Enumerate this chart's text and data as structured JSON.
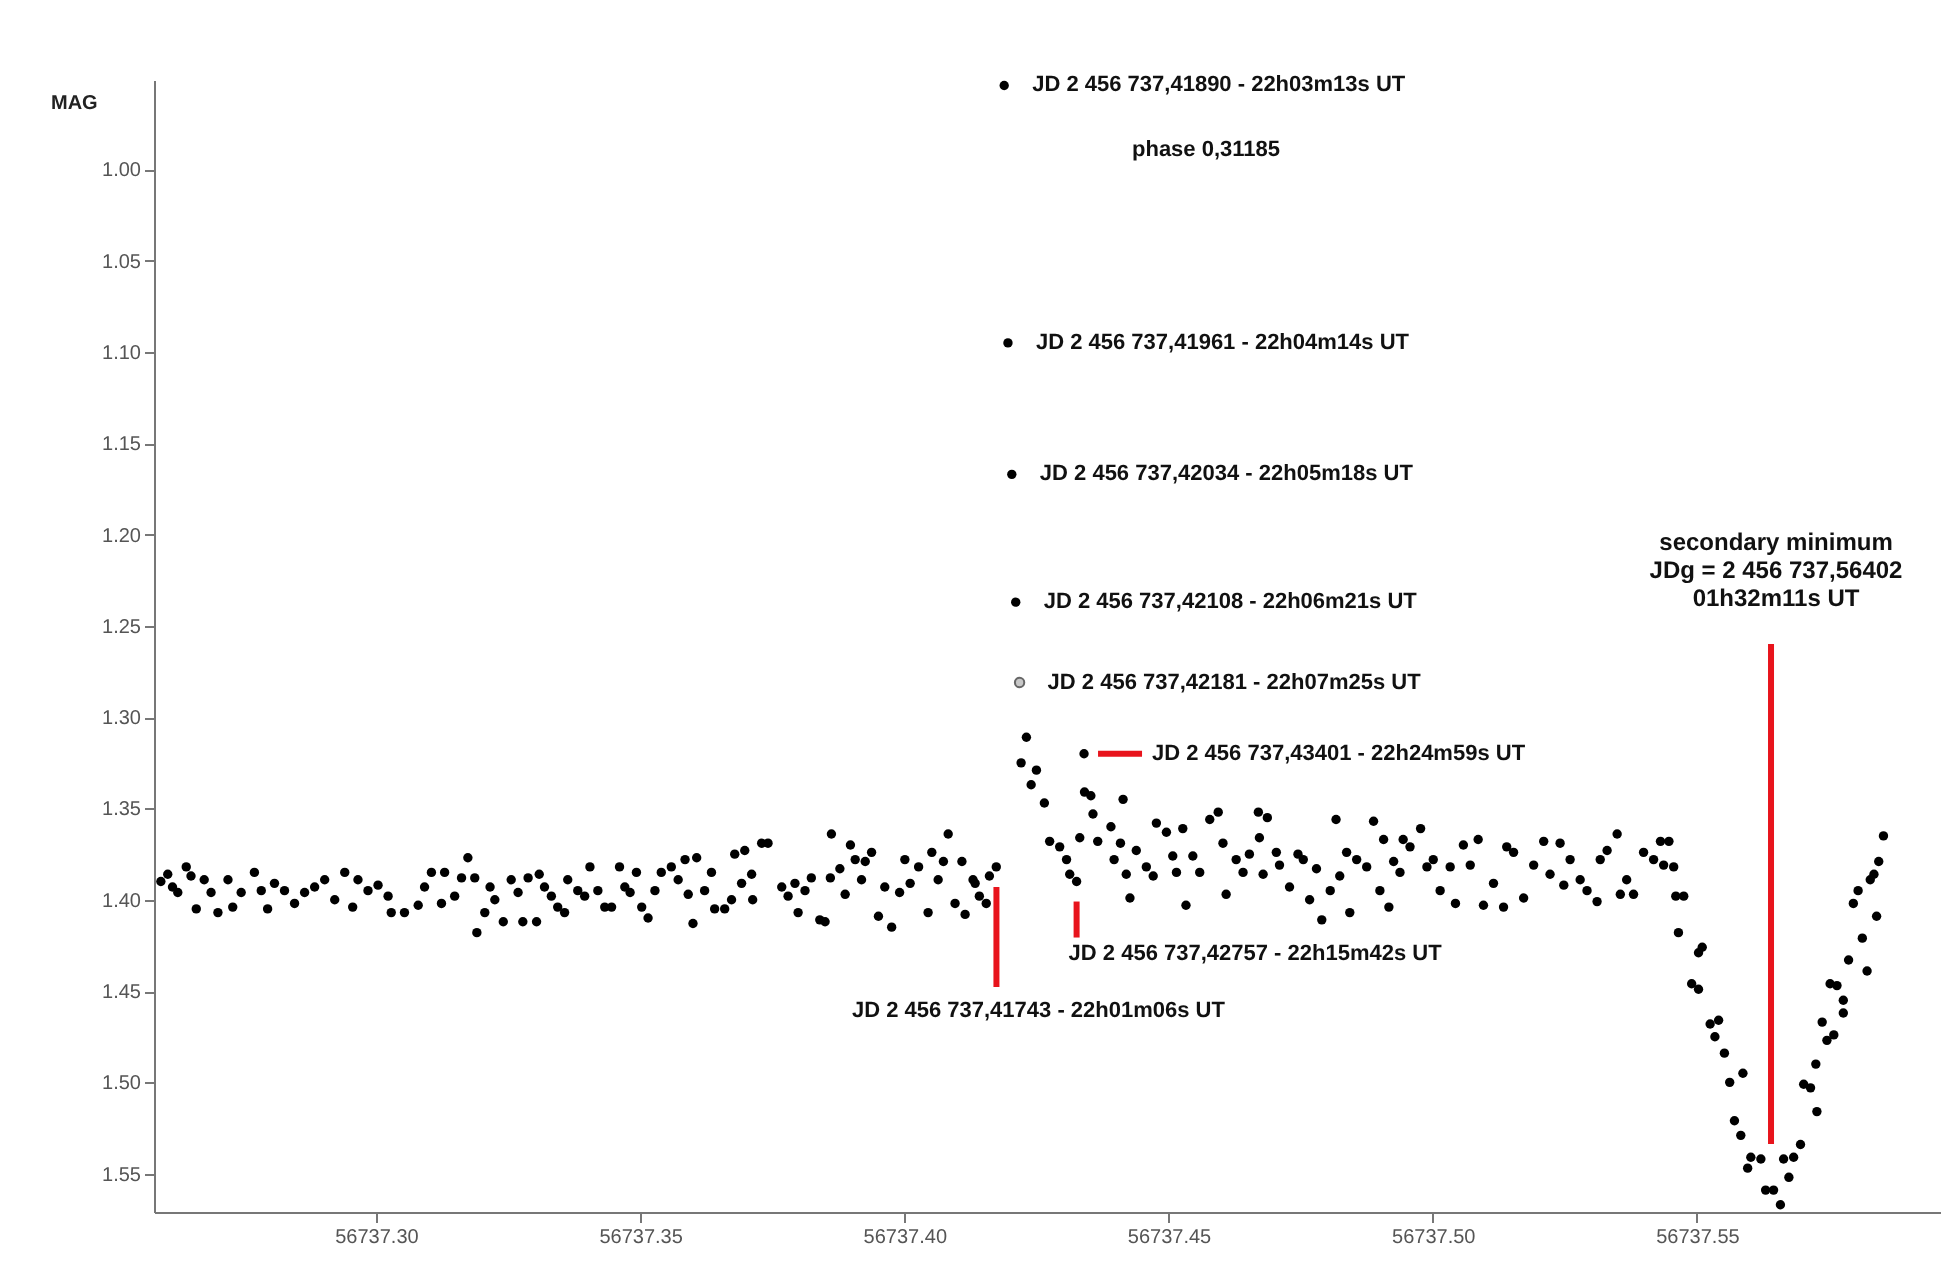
{
  "chart_data": {
    "type": "scatter",
    "ylabel": "MAG",
    "marker": "circle",
    "grid": false,
    "xlim": [
      56737.258,
      56737.596
    ],
    "ylim": [
      1.571,
      0.951
    ],
    "xticks": [
      {
        "value": 56737.3,
        "label": "56737.30"
      },
      56737.35,
      {
        "value": 56737.4,
        "label": "56737.40"
      },
      56737.45,
      {
        "value": 56737.5,
        "label": "56737.50"
      },
      56737.55
    ],
    "yticks": [
      {
        "value": 1.0,
        "label": "1.00"
      },
      1.05,
      {
        "value": 1.1,
        "label": "1.10"
      },
      1.15,
      {
        "value": 1.2,
        "label": "1.20"
      },
      1.25,
      {
        "value": 1.3,
        "label": "1.30"
      },
      1.35,
      {
        "value": 1.4,
        "label": "1.40"
      },
      1.45,
      {
        "value": 1.5,
        "label": "1.50"
      },
      1.55
    ],
    "series": [
      {
        "color": "#000000",
        "x": [
          56737.2593,
          56737.2606,
          56737.2615,
          56737.2625,
          56737.2641,
          56737.265,
          56737.266,
          56737.2675,
          56737.2688,
          56737.2701,
          56737.272,
          56737.2729,
          56737.2745,
          56737.277,
          56737.2783,
          56737.2795,
          56737.2808,
          56737.2827,
          56737.2846,
          56737.2865,
          56737.2884,
          56737.2903,
          56737.2922,
          56737.2941,
          56737.2956,
          56737.2966,
          56737.2985,
          56737.3004,
          56737.3023,
          56737.3029,
          56737.3054,
          56737.308,
          56737.3092,
          56737.3105,
          56737.3124,
          56737.313,
          56737.3149,
          56737.3162,
          56737.3174,
          56737.3187,
          56737.3191,
          56737.3206,
          56737.3216,
          56737.3225,
          56737.3241,
          56737.3256,
          56737.3269,
          56737.3278,
          56737.3288,
          56737.3304,
          56737.3309,
          56737.3319,
          56737.3332,
          56737.3344,
          56737.3357,
          56737.3363,
          56737.3382,
          56737.3395,
          56737.3405,
          56737.342,
          56737.3433,
          56737.3446,
          56737.3461,
          56737.3471,
          56737.3481,
          56737.3493,
          56737.3503,
          56737.3515,
          56737.3528,
          56737.354,
          56737.3559,
          56737.3572,
          56737.3585,
          56737.3591,
          56737.36,
          56737.3607,
          56737.3622,
          56737.3635,
          56737.3641,
          56737.366,
          56737.3673,
          56737.3679,
          56737.3692,
          56737.3698,
          56737.3711,
          56737.3713,
          56737.373,
          56737.3742,
          56737.3768,
          56737.378,
          56737.3793,
          56737.3799,
          56737.3812,
          56737.3824,
          56737.384,
          56737.385,
          56737.386,
          56737.3862,
          56737.3878,
          56737.3888,
          56737.3898,
          56737.3907,
          56737.3919,
          56737.3926,
          56737.3938,
          56737.3951,
          56737.3963,
          56737.3976,
          56737.3991,
          56737.4001,
          56737.4011,
          56737.4027,
          56737.4045,
          56737.4052,
          56737.4064,
          56737.4074,
          56737.4083,
          56737.4096,
          56737.4109,
          56737.4115,
          56737.413,
          56737.4134,
          56737.4142,
          56737.4155,
          56737.4161,
          56737.4174,
          56737.4189,
          56737.41961,
          56737.42034,
          56737.42108,
          56737.4221,
          56737.4231,
          56737.424,
          56737.425,
          56737.4265,
          56737.4275,
          56737.4294,
          56737.4307,
          56737.4313,
          56737.4326,
          56737.4332,
          56737.43401,
          56737.4341,
          56737.4353,
          56737.4357,
          56737.4366,
          56737.4391,
          56737.4397,
          56737.4409,
          56737.4414,
          56737.442,
          56737.4427,
          56737.4439,
          56737.4458,
          56737.4471,
          56737.4477,
          56737.4496,
          56737.4508,
          56737.4515,
          56737.4527,
          56737.4533,
          56737.4546,
          56737.4559,
          56737.4578,
          56737.4594,
          56737.4603,
          56737.4609,
          56737.4628,
          56737.4641,
          56737.4653,
          56737.467,
          56737.4672,
          56737.4679,
          56737.4687,
          56737.4704,
          56737.471,
          56737.4729,
          56737.4745,
          56737.4755,
          56737.4767,
          56737.478,
          56737.479,
          56737.4806,
          56737.4817,
          56737.4824,
          56737.4837,
          56737.4843,
          56737.4856,
          56737.4875,
          56737.4888,
          56737.49,
          56737.4907,
          56737.4917,
          56737.4926,
          56737.4938,
          56737.4944,
          56737.4957,
          56737.4977,
          56737.4989,
          56737.5001,
          56737.5014,
          56737.5033,
          56737.5043,
          56737.5058,
          56737.5071,
          56737.5086,
          56737.5096,
          56737.5115,
          56737.5134,
          56737.514,
          56737.5153,
          56737.5172,
          56737.5191,
          56737.521,
          56737.5222,
          56737.5241,
          56737.5248,
          56737.526,
          56737.5279,
          56737.5292,
          56737.5311,
          56737.5317,
          56737.533,
          56737.5349,
          56737.5355,
          56737.5367,
          56737.538,
          56737.5399,
          56737.5418,
          56737.5431,
          56737.5437,
          56737.5447,
          56737.5456,
          56737.546,
          56737.5465,
          56737.5475,
          56737.549,
          56737.5503,
          56737.5503,
          56737.551,
          56737.5525,
          56737.5534,
          56737.5541,
          56737.5552,
          56737.5562,
          56737.5571,
          56737.5583,
          56737.5587,
          56737.5596,
          56737.5602,
          56737.5621,
          56737.563,
          56737.5645,
          56737.5658,
          56737.5664,
          56737.5674,
          56737.5683,
          56737.5696,
          56737.5702,
          56737.5715,
          56737.5725,
          56737.5727,
          56737.5737,
          56737.5746,
          56737.5752,
          56737.5759,
          56737.5765,
          56737.5777,
          56737.5777,
          56737.5787,
          56737.5796,
          56737.5805,
          56737.5813,
          56737.5822,
          56737.5828,
          56737.5835,
          56737.584,
          56737.5844,
          56737.5853
        ],
        "values": [
          1.39,
          1.386,
          1.393,
          1.396,
          1.382,
          1.387,
          1.405,
          1.389,
          1.396,
          1.407,
          1.389,
          1.404,
          1.396,
          1.385,
          1.395,
          1.405,
          1.391,
          1.395,
          1.402,
          1.396,
          1.393,
          1.389,
          1.4,
          1.385,
          1.404,
          1.389,
          1.395,
          1.392,
          1.398,
          1.407,
          1.407,
          1.403,
          1.393,
          1.385,
          1.402,
          1.385,
          1.398,
          1.388,
          1.377,
          1.388,
          1.418,
          1.407,
          1.393,
          1.4,
          1.412,
          1.389,
          1.396,
          1.412,
          1.388,
          1.412,
          1.386,
          1.393,
          1.398,
          1.404,
          1.407,
          1.389,
          1.395,
          1.398,
          1.382,
          1.395,
          1.404,
          1.404,
          1.382,
          1.393,
          1.396,
          1.385,
          1.404,
          1.41,
          1.395,
          1.385,
          1.382,
          1.389,
          1.378,
          1.397,
          1.413,
          1.377,
          1.395,
          1.385,
          1.405,
          1.405,
          1.4,
          1.375,
          1.391,
          1.373,
          1.386,
          1.4,
          1.369,
          1.369,
          1.393,
          1.398,
          1.391,
          1.407,
          1.395,
          1.388,
          1.411,
          1.412,
          1.388,
          1.364,
          1.383,
          1.397,
          1.37,
          1.378,
          1.389,
          1.379,
          1.374,
          1.409,
          1.393,
          1.415,
          1.396,
          1.378,
          1.391,
          1.382,
          1.407,
          1.374,
          1.389,
          1.379,
          1.364,
          1.402,
          1.379,
          1.408,
          1.389,
          1.391,
          1.398,
          1.402,
          1.387,
          1.382,
          0.954,
          1.095,
          1.167,
          1.237,
          1.325,
          1.311,
          1.337,
          1.329,
          1.347,
          1.368,
          1.371,
          1.378,
          1.386,
          1.39,
          1.366,
          1.32,
          1.341,
          1.343,
          1.353,
          1.368,
          1.36,
          1.378,
          1.369,
          1.345,
          1.386,
          1.399,
          1.373,
          1.382,
          1.387,
          1.358,
          1.363,
          1.376,
          1.385,
          1.361,
          1.403,
          1.376,
          1.385,
          1.356,
          1.352,
          1.369,
          1.397,
          1.378,
          1.385,
          1.375,
          1.352,
          1.366,
          1.386,
          1.355,
          1.374,
          1.381,
          1.393,
          1.375,
          1.378,
          1.4,
          1.383,
          1.411,
          1.395,
          1.356,
          1.387,
          1.374,
          1.407,
          1.378,
          1.382,
          1.357,
          1.395,
          1.367,
          1.404,
          1.379,
          1.385,
          1.367,
          1.371,
          1.361,
          1.382,
          1.378,
          1.395,
          1.382,
          1.402,
          1.37,
          1.381,
          1.367,
          1.403,
          1.391,
          1.404,
          1.371,
          1.374,
          1.399,
          1.381,
          1.368,
          1.386,
          1.369,
          1.392,
          1.378,
          1.389,
          1.395,
          1.401,
          1.378,
          1.373,
          1.364,
          1.397,
          1.389,
          1.397,
          1.374,
          1.378,
          1.368,
          1.381,
          1.368,
          1.382,
          1.398,
          1.418,
          1.398,
          1.446,
          1.429,
          1.449,
          1.426,
          1.468,
          1.475,
          1.466,
          1.484,
          1.5,
          1.521,
          1.529,
          1.495,
          1.547,
          1.541,
          1.542,
          1.559,
          1.559,
          1.567,
          1.542,
          1.552,
          1.541,
          1.534,
          1.501,
          1.503,
          1.49,
          1.516,
          1.467,
          1.477,
          1.446,
          1.474,
          1.447,
          1.455,
          1.462,
          1.433,
          1.402,
          1.395,
          1.421,
          1.439,
          1.389,
          1.386,
          1.409,
          1.379,
          1.365
        ]
      },
      {
        "color": "#c8c8c8",
        "x": [
          56737.42181
        ],
        "values": [
          1.281
        ]
      }
    ],
    "annotations": [
      {
        "text": "JD 2 456 737,41890 - 22h03m13s UT",
        "x": 56737.4189,
        "y": 0.954
      },
      {
        "text": "JD 2 456 737,41961 - 22h04m14s UT",
        "x": 56737.41961,
        "y": 1.095
      },
      {
        "text": "JD 2 456 737,42034 - 22h05m18s UT",
        "x": 56737.42034,
        "y": 1.167
      },
      {
        "text": "JD 2 456 737,42108 - 22h06m21s UT",
        "x": 56737.42108,
        "y": 1.237
      },
      {
        "text": "JD 2 456 737,42181 - 22h07m25s UT",
        "x": 56737.42181,
        "y": 1.281
      },
      {
        "text": "JD 2 456 737,43401 - 22h24m59s UT",
        "x": 56737.43401,
        "y": 1.32
      },
      {
        "text": "JD 2 456 737,42757 - 22h15m42s UT",
        "x": 56737.4326,
        "y": 1.39
      },
      {
        "text": "JD 2 456 737,41743 - 22h01m06s UT",
        "x": 56737.41743,
        "y": 1.393
      },
      "phase 0,31185",
      "secondary minimum\nJDg = 2 456 737,56402\n01h32m11s UT"
    ],
    "ref_lines": [
      {
        "axis": "x",
        "value": 56737.56402,
        "color": "#e8141c"
      }
    ]
  }
}
